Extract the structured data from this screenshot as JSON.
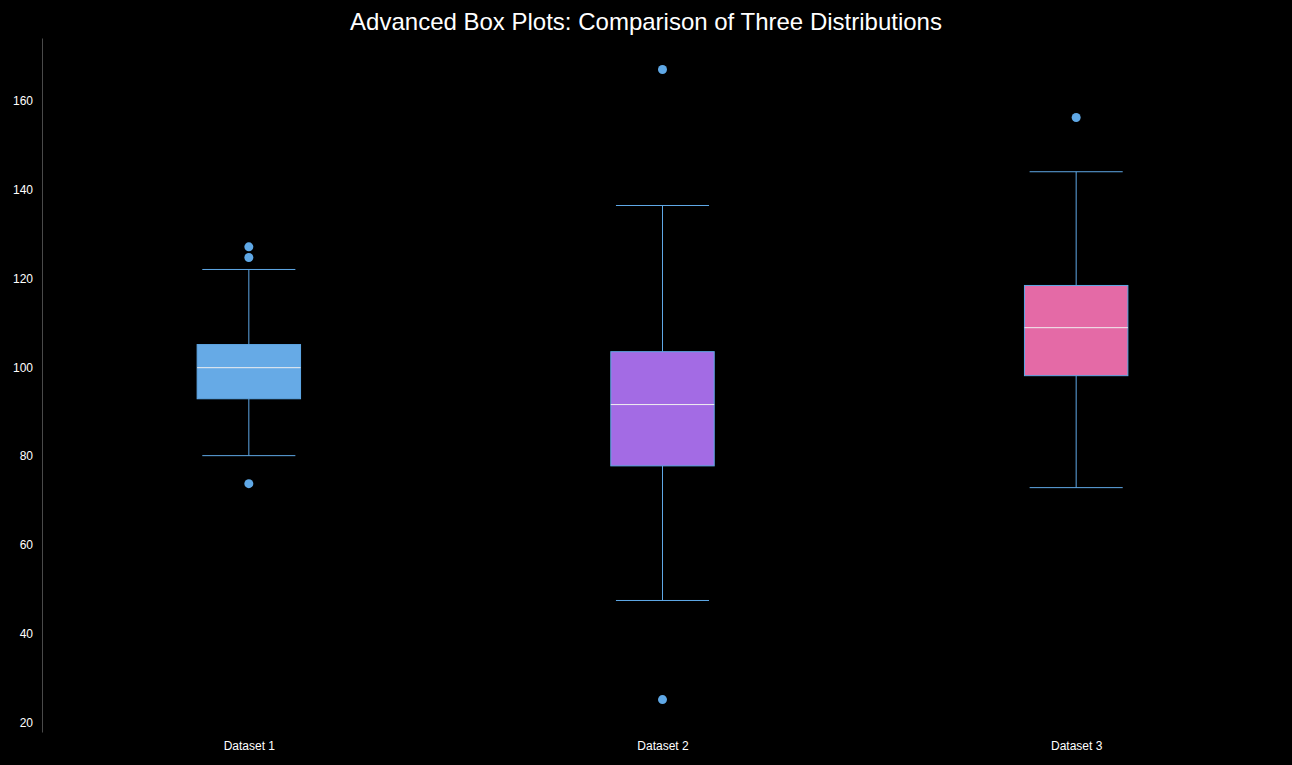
{
  "chart_data": {
    "type": "box",
    "title": "Advanced Box Plots: Comparison of Three Distributions",
    "categories": [
      "Dataset 1",
      "Dataset 2",
      "Dataset 3"
    ],
    "boxes": [
      {
        "whislo": 80.1,
        "q1": 92.9,
        "med": 99.9,
        "q3": 105.1,
        "whishi": 122.0,
        "fliers": [
          127.1,
          124.7,
          73.8
        ]
      },
      {
        "whislo": 47.5,
        "q1": 77.8,
        "med": 91.6,
        "q3": 103.5,
        "whishi": 136.4,
        "fliers": [
          167.0,
          25.2
        ]
      },
      {
        "whislo": 72.9,
        "q1": 98.1,
        "med": 108.9,
        "q3": 118.4,
        "whishi": 144.0,
        "fliers": [
          156.2
        ]
      }
    ],
    "colors": [
      "#66aae6",
      "#a36be4",
      "#e46aa6"
    ],
    "ylim": [
      17.9,
      174.1
    ],
    "yticks": [
      20,
      40,
      60,
      80,
      100,
      120,
      140,
      160
    ],
    "grid": false
  }
}
